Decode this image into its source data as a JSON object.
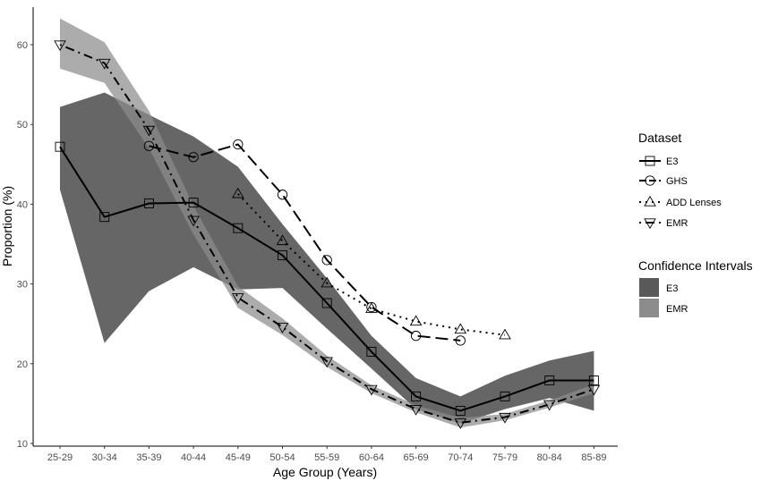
{
  "chart_data": {
    "type": "line",
    "xlabel": "Age Group (Years)",
    "ylabel": "Proportion (%)",
    "categories": [
      "25-29",
      "30-34",
      "35-39",
      "40-44",
      "45-49",
      "50-54",
      "55-59",
      "60-64",
      "65-69",
      "70-74",
      "75-79",
      "80-84",
      "85-89"
    ],
    "ylim": [
      10,
      64
    ],
    "yticks": [
      10,
      20,
      30,
      40,
      50,
      60
    ],
    "grid": false,
    "legend_position": "right",
    "series": [
      {
        "name": "E3",
        "marker": "square",
        "dash": "solid",
        "values": [
          47.2,
          38.4,
          40.1,
          40.2,
          37.0,
          33.6,
          27.6,
          21.5,
          15.9,
          14.1,
          15.9,
          17.9,
          17.9
        ]
      },
      {
        "name": "GHS",
        "marker": "circle",
        "dash": "longdash",
        "values": [
          null,
          null,
          47.3,
          45.9,
          47.5,
          41.2,
          33.0,
          27.1,
          23.5,
          22.9,
          null,
          null,
          null
        ]
      },
      {
        "name": "ADD Lenses",
        "marker": "triangle-up",
        "dash": "dotted",
        "values": [
          null,
          null,
          null,
          null,
          41.3,
          35.4,
          30.1,
          26.9,
          25.3,
          24.3,
          23.6,
          null,
          null
        ]
      },
      {
        "name": "EMR",
        "marker": "triangle-down",
        "dash": "dotdash",
        "values": [
          60.0,
          57.7,
          49.3,
          38.0,
          28.3,
          24.6,
          20.3,
          16.8,
          14.3,
          12.6,
          13.3,
          14.9,
          16.8
        ]
      }
    ],
    "confidence_intervals": [
      {
        "name": "E3",
        "color": "#595959",
        "lower": [
          41.8,
          22.6,
          29.1,
          32.1,
          29.3,
          29.5,
          24.4,
          19.4,
          14.3,
          12.5,
          14.3,
          15.7,
          14.1
        ],
        "upper": [
          52.2,
          54.0,
          51.2,
          48.5,
          44.7,
          37.5,
          30.7,
          23.5,
          18.2,
          15.9,
          18.5,
          20.4,
          21.6
        ]
      },
      {
        "name": "EMR",
        "color": "#8c8c8c",
        "lower": [
          57.0,
          55.2,
          47.0,
          36.2,
          27.0,
          23.6,
          19.6,
          16.3,
          13.9,
          12.0,
          12.9,
          14.5,
          16.3
        ],
        "upper": [
          63.3,
          60.3,
          51.7,
          39.8,
          29.7,
          25.7,
          21.0,
          17.3,
          14.8,
          13.2,
          13.7,
          15.4,
          17.4
        ]
      }
    ]
  },
  "legend": {
    "dataset_title": "Dataset",
    "dataset_items": [
      "E3",
      "GHS",
      "ADD Lenses",
      "EMR"
    ],
    "ci_title": "Confidence Intervals",
    "ci_items": [
      "E3",
      "EMR"
    ]
  }
}
